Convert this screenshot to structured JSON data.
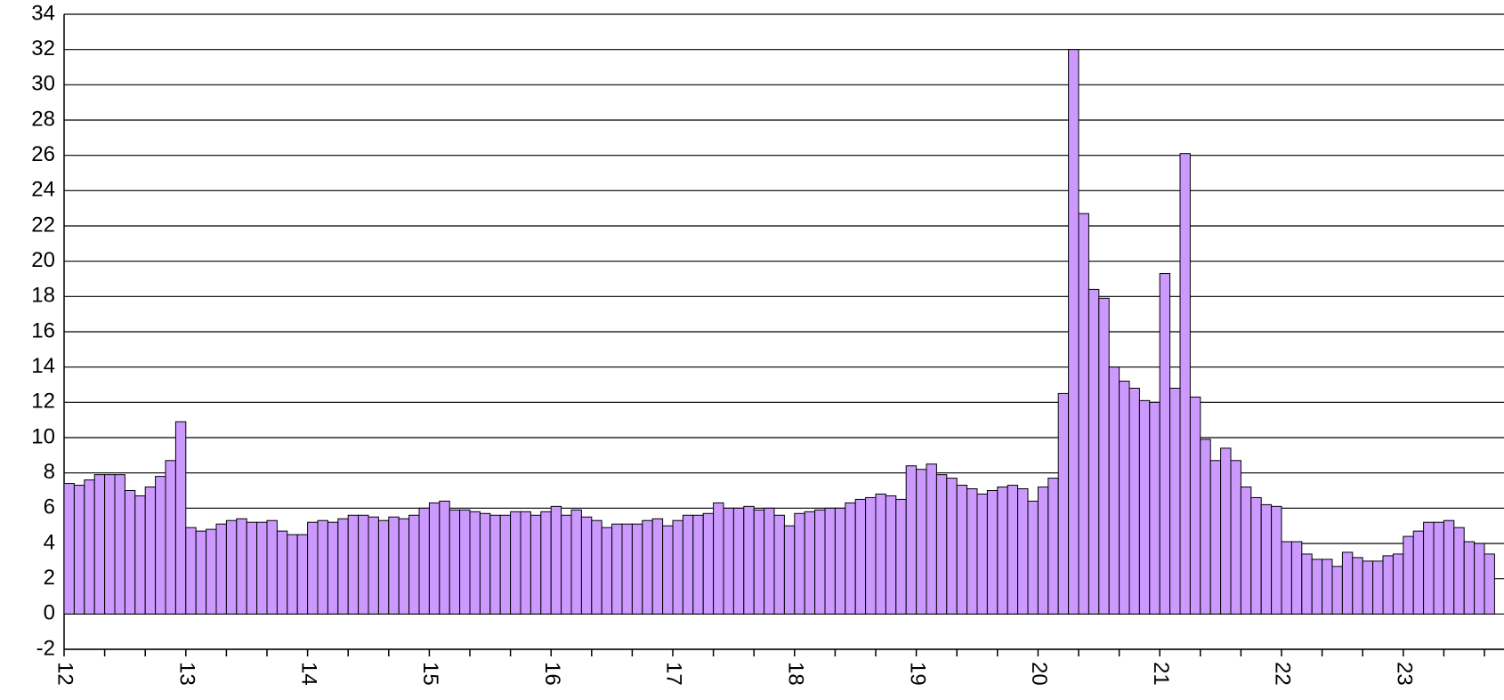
{
  "chart_data": {
    "type": "bar",
    "categories": [
      "12",
      null,
      null,
      null,
      null,
      null,
      null,
      null,
      null,
      null,
      null,
      null,
      "13",
      null,
      null,
      null,
      null,
      null,
      null,
      null,
      null,
      null,
      null,
      null,
      "14",
      null,
      null,
      null,
      null,
      null,
      null,
      null,
      null,
      null,
      null,
      null,
      "15",
      null,
      null,
      null,
      null,
      null,
      null,
      null,
      null,
      null,
      null,
      null,
      "16",
      null,
      null,
      null,
      null,
      null,
      null,
      null,
      null,
      null,
      null,
      null,
      "17",
      null,
      null,
      null,
      null,
      null,
      null,
      null,
      null,
      null,
      null,
      null,
      "18",
      null,
      null,
      null,
      null,
      null,
      null,
      null,
      null,
      null,
      null,
      null,
      "19",
      null,
      null,
      null,
      null,
      null,
      null,
      null,
      null,
      null,
      null,
      null,
      "20",
      null,
      null,
      null,
      null,
      null,
      null,
      null,
      null,
      null,
      null,
      null,
      "21",
      null,
      null,
      null,
      null,
      null,
      null,
      null,
      null,
      null,
      null,
      null,
      "22",
      null,
      null,
      null,
      null,
      null,
      null,
      null,
      null,
      null,
      null,
      null,
      "23",
      null,
      null,
      null,
      null,
      null,
      null,
      null,
      null
    ],
    "values": [
      7.4,
      7.3,
      7.6,
      7.9,
      7.9,
      7.9,
      7.0,
      6.7,
      7.2,
      7.8,
      8.7,
      10.9,
      4.9,
      4.7,
      4.8,
      5.1,
      5.3,
      5.4,
      5.2,
      5.2,
      5.3,
      4.7,
      4.5,
      4.5,
      5.2,
      5.3,
      5.2,
      5.4,
      5.6,
      5.6,
      5.5,
      5.3,
      5.5,
      5.4,
      5.6,
      6.0,
      6.3,
      6.4,
      5.9,
      5.9,
      5.8,
      5.7,
      5.6,
      5.6,
      5.8,
      5.8,
      5.6,
      5.8,
      6.1,
      5.6,
      5.9,
      5.5,
      5.3,
      4.9,
      5.1,
      5.1,
      5.1,
      5.3,
      5.4,
      5.0,
      5.3,
      5.6,
      5.6,
      5.7,
      6.3,
      6.0,
      6.0,
      6.1,
      5.9,
      6.0,
      5.6,
      5.0,
      5.7,
      5.8,
      5.9,
      6.0,
      6.0,
      6.3,
      6.5,
      6.6,
      6.8,
      6.7,
      6.5,
      8.4,
      8.2,
      8.5,
      7.9,
      7.7,
      7.3,
      7.1,
      6.8,
      7.0,
      7.2,
      7.3,
      7.1,
      6.4,
      7.2,
      7.7,
      12.5,
      32,
      22.7,
      18.4,
      17.9,
      14.0,
      13.2,
      12.8,
      12.1,
      12.0,
      19.3,
      12.8,
      26.1,
      12.3,
      9.9,
      8.7,
      9.4,
      8.7,
      7.2,
      6.6,
      6.2,
      6.1,
      4.1,
      4.1,
      3.4,
      3.1,
      3.1,
      2.7,
      3.5,
      3.2,
      3.0,
      3.0,
      3.3,
      3.4,
      4.4,
      4.7,
      5.2,
      5.2,
      5.3,
      4.9,
      4.1,
      4.0,
      3.4
    ],
    "color": "#cc99ff",
    "ylim": [
      -2,
      34
    ],
    "yticks": [
      -2,
      0,
      2,
      4,
      6,
      8,
      10,
      12,
      14,
      16,
      18,
      20,
      22,
      24,
      26,
      28,
      30,
      32,
      34
    ],
    "grid": true
  }
}
